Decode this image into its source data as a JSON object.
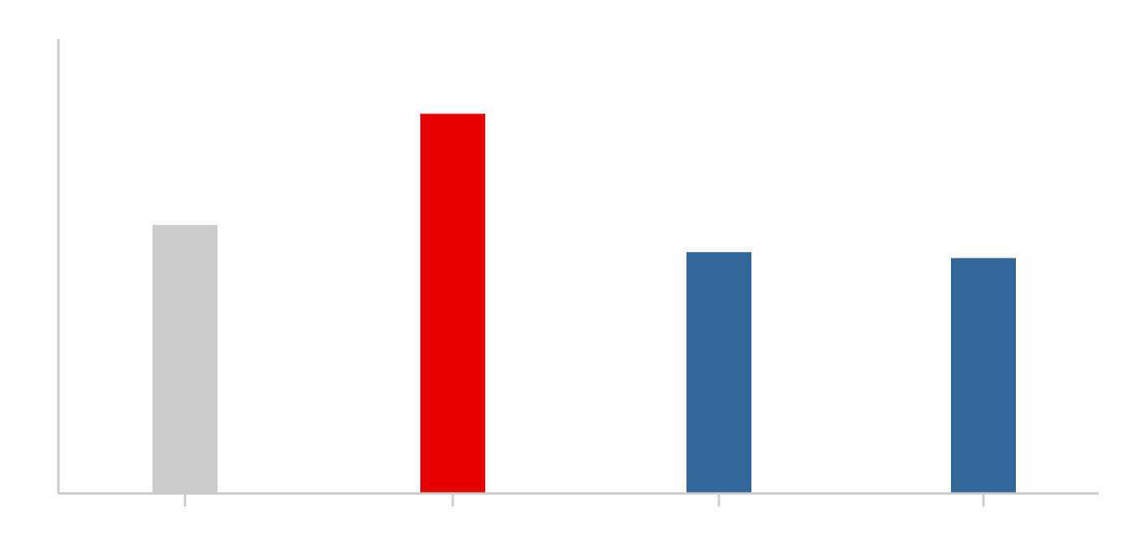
{
  "chart_data": {
    "type": "bar",
    "categories": [
      "",
      "",
      "",
      ""
    ],
    "values": [
      5.9,
      8.35,
      5.3,
      5.17
    ],
    "ylim": [
      0,
      10
    ],
    "bar_colors": [
      "#cccccc",
      "#e60000",
      "#336699",
      "#336699"
    ],
    "axis_color": "#cccccc",
    "title": "",
    "xlabel": "",
    "ylabel": "",
    "grid": false,
    "legend": "none"
  }
}
